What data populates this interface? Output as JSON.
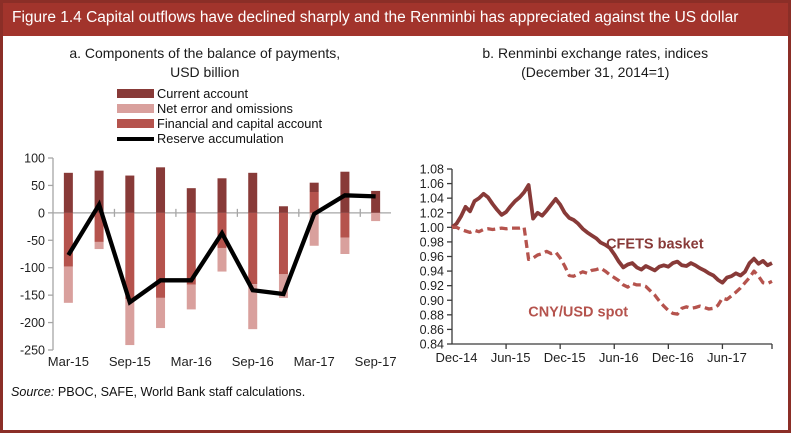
{
  "figure": {
    "title": "Figure 1.4  Capital outflows have declined sharply and the Renminbi has appreciated against the US dollar",
    "source_prefix": "Source:",
    "source_text": "PBOC, SAFE, World Bank staff calculations."
  },
  "colors": {
    "title_bar_bg": "#a2342c",
    "frame_border": "#8b2e27",
    "title_text": "#ffffff",
    "dark_red": "#883a38",
    "medium_red": "#b5534d",
    "light_pink": "#d9a09d",
    "line_black": "#000000",
    "axis_gray": "#a6a6a6",
    "axis_dark": "#3a3a3a",
    "tick_text": "#1f1f1f"
  },
  "chart_data": [
    {
      "type": "bar",
      "title_line1": "a. Components of the balance of payments,",
      "title_line2": "USD billion",
      "legend": [
        "Current account",
        "Net error and omissions",
        "Financial and capital account",
        "Reserve accumulation"
      ],
      "categories": [
        "Mar-15",
        "Jun-15",
        "Sep-15",
        "Dec-15",
        "Mar-16",
        "Jun-16",
        "Sep-16",
        "Dec-16",
        "Mar-17",
        "Jun-17",
        "Sep-17"
      ],
      "x_tick_labels": [
        "Mar-15",
        "Sep-15",
        "Mar-16",
        "Sep-16",
        "Mar-17",
        "Sep-17"
      ],
      "ylim": [
        -250,
        100
      ],
      "y_ticks": [
        100,
        50,
        0,
        -50,
        -100,
        -150,
        -200,
        -250
      ],
      "grid": "zero-line-only",
      "series": [
        {
          "name": "Current account",
          "kind": "bar",
          "color_key": "dark_red",
          "values": [
            73,
            77,
            68,
            83,
            45,
            63,
            73,
            12,
            17,
            75,
            40
          ]
        },
        {
          "name": "Net error and omissions",
          "kind": "bar",
          "color_key": "light_pink",
          "values": [
            -66,
            -13,
            -84,
            -55,
            -45,
            -43,
            -82,
            -43,
            -60,
            -30,
            -15
          ]
        },
        {
          "name": "Financial and capital account",
          "kind": "bar",
          "color_key": "medium_red",
          "values": [
            -98,
            -53,
            -157,
            -155,
            -131,
            -64,
            -130,
            -112,
            38,
            -45,
            0
          ]
        },
        {
          "name": "Reserve accumulation",
          "kind": "line",
          "color_key": "line_black",
          "values": [
            -77,
            15,
            -163,
            -123,
            -123,
            -37,
            -141,
            -148,
            -2,
            32,
            30
          ]
        }
      ]
    },
    {
      "type": "line",
      "title_line1": "b.  Renminbi exchange rates, indices",
      "title_line2": "(December 31, 2014=1)",
      "x_tick_labels": [
        "Dec-14",
        "Jun-15",
        "Dec-15",
        "Jun-16",
        "Dec-16",
        "Jun-17"
      ],
      "x_label_indices": [
        1,
        13,
        25,
        37,
        49,
        61
      ],
      "x_tick_indices": [
        12,
        24,
        36,
        48,
        60,
        71
      ],
      "x_unit": "semi-monthly observations, Dec-2014 to Nov-2017",
      "ylim": [
        0.84,
        1.08
      ],
      "y_tick_step": 0.02,
      "legend_position": "in-plot-labels",
      "series": [
        {
          "name": "CFETS basket",
          "style": "solid",
          "color_key": "dark_red",
          "values": [
            1.0,
            1.005,
            1.015,
            1.028,
            1.022,
            1.036,
            1.04,
            1.046,
            1.041,
            1.032,
            1.024,
            1.017,
            1.021,
            1.029,
            1.036,
            1.041,
            1.048,
            1.058,
            1.012,
            1.02,
            1.016,
            1.023,
            1.031,
            1.039,
            1.031,
            1.02,
            1.013,
            1.01,
            1.005,
            0.998,
            0.993,
            0.989,
            0.985,
            0.979,
            0.976,
            0.972,
            0.963,
            0.953,
            0.945,
            0.949,
            0.951,
            0.945,
            0.942,
            0.947,
            0.944,
            0.941,
            0.946,
            0.948,
            0.946,
            0.951,
            0.953,
            0.948,
            0.947,
            0.951,
            0.948,
            0.944,
            0.941,
            0.937,
            0.934,
            0.928,
            0.924,
            0.931,
            0.933,
            0.937,
            0.934,
            0.939,
            0.951,
            0.957,
            0.95,
            0.954,
            0.948,
            0.951
          ]
        },
        {
          "name": "CNY/USD spot",
          "style": "dashed",
          "color_key": "medium_red",
          "values": [
            1.0,
            1.0,
            0.997,
            0.995,
            0.993,
            0.996,
            0.994,
            0.997,
            0.998,
            0.997,
            0.998,
            0.999,
            0.998,
            0.999,
            0.999,
            0.999,
            1.0,
            0.956,
            0.958,
            0.962,
            0.964,
            0.967,
            0.964,
            0.966,
            0.958,
            0.947,
            0.934,
            0.933,
            0.936,
            0.939,
            0.937,
            0.941,
            0.942,
            0.944,
            0.94,
            0.935,
            0.931,
            0.927,
            0.921,
            0.918,
            0.923,
            0.921,
            0.921,
            0.919,
            0.913,
            0.907,
            0.899,
            0.892,
            0.886,
            0.882,
            0.881,
            0.889,
            0.891,
            0.889,
            0.89,
            0.892,
            0.89,
            0.888,
            0.889,
            0.893,
            0.903,
            0.901,
            0.906,
            0.911,
            0.917,
            0.924,
            0.931,
            0.94,
            0.933,
            0.924,
            0.923,
            0.926
          ]
        }
      ],
      "annotations": [
        {
          "text": "CFETS basket",
          "x_index": 45,
          "y": 0.971,
          "color_key": "dark_red"
        },
        {
          "text": "CNY/USD spot",
          "x_index": 28,
          "y": 0.878,
          "color_key": "medium_red"
        }
      ]
    }
  ]
}
